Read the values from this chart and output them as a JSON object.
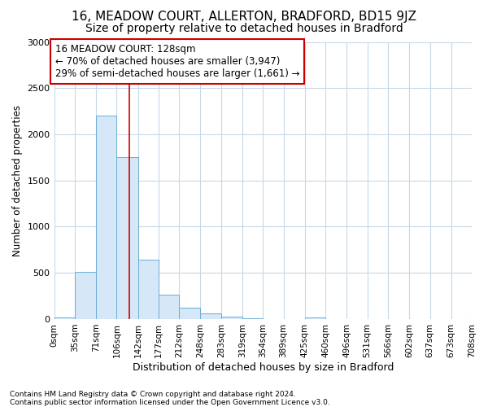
{
  "title1": "16, MEADOW COURT, ALLERTON, BRADFORD, BD15 9JZ",
  "title2": "Size of property relative to detached houses in Bradford",
  "xlabel": "Distribution of detached houses by size in Bradford",
  "ylabel": "Number of detached properties",
  "footnote1": "Contains HM Land Registry data © Crown copyright and database right 2024.",
  "footnote2": "Contains public sector information licensed under the Open Government Licence v3.0.",
  "annotation_title": "16 MEADOW COURT: 128sqm",
  "annotation_line1": "← 70% of detached houses are smaller (3,947)",
  "annotation_line2": "29% of semi-detached houses are larger (1,661) →",
  "bar_edges": [
    0,
    35,
    71,
    106,
    142,
    177,
    212,
    248,
    283,
    319,
    354,
    389,
    425,
    460,
    496,
    531,
    566,
    602,
    637,
    673,
    708
  ],
  "bar_heights": [
    20,
    510,
    2200,
    1750,
    640,
    260,
    125,
    65,
    30,
    10,
    0,
    0,
    20,
    0,
    0,
    0,
    0,
    0,
    0,
    0
  ],
  "property_size": 128,
  "ylim": [
    0,
    3000
  ],
  "bar_color": "#d6e8f7",
  "bar_edge_color": "#6baed6",
  "vline_color": "#cc0000",
  "bg_color": "#ffffff",
  "grid_color": "#c8d8e8",
  "annotation_box_color": "#cc0000",
  "title1_fontsize": 11,
  "title2_fontsize": 10,
  "xlabel_fontsize": 9,
  "ylabel_fontsize": 8.5,
  "tick_fontsize": 7.5,
  "annotation_fontsize": 8.5
}
